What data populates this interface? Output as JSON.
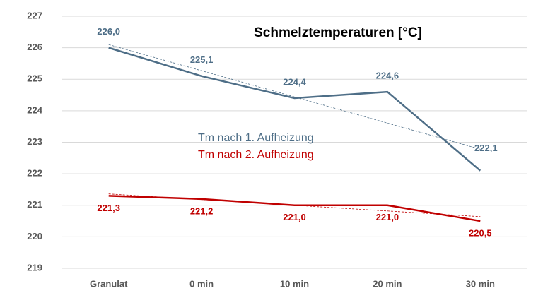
{
  "chart_data": {
    "type": "line",
    "title": "Schmelztemperaturen [°C]",
    "categories": [
      "Granulat",
      "0 min",
      "10 min",
      "20 min",
      "30 min"
    ],
    "series": [
      {
        "name": "Tm nach 1. Aufheizung",
        "color": "#4e6e87",
        "values": [
          226.0,
          225.1,
          224.4,
          224.6,
          222.1
        ],
        "value_labels": [
          "226,0",
          "225,1",
          "224,4",
          "224,6",
          "222,1"
        ],
        "trendline": true
      },
      {
        "name": "Tm nach 2. Aufheizung",
        "color": "#c00000",
        "values": [
          221.3,
          221.2,
          221.0,
          221.0,
          220.5
        ],
        "value_labels": [
          "221,3",
          "221,2",
          "221,0",
          "221,0",
          "220,5"
        ],
        "trendline": true
      }
    ],
    "ylim": [
      219,
      227
    ],
    "yticks": [
      219,
      220,
      221,
      222,
      223,
      224,
      225,
      226,
      227
    ],
    "grid": true
  }
}
